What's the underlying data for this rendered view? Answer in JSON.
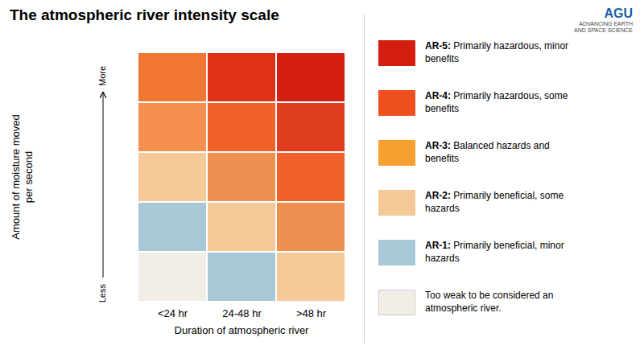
{
  "chart_data": {
    "type": "heatmap",
    "title": "The atmospheric river intensity scale",
    "xlabel": "Duration of atmospheric river",
    "ylabel": "Amount of moisture moved\nper second",
    "categories": [
      "<24 hr",
      "24-48 hr",
      ">48 hr"
    ],
    "cells": [
      [
        "#F07832",
        "#E03018",
        "#D41E10"
      ],
      [
        "#F59050",
        "#F06028",
        "#E03C20"
      ],
      [
        "#F5C898",
        "#F09050",
        "#F06028"
      ],
      [
        "#A8C8D8",
        "#F5C898",
        "#F09050"
      ],
      [
        "#F2EEE5",
        "#A8C8D8",
        "#F5C898"
      ]
    ],
    "y_arrow": {
      "top": "More",
      "bottom": "Less"
    },
    "tick_labels": "x",
    "legend_items": [
      {
        "label_bold": "AR-5:",
        "label": "Primarily hazardous, minor\nbenefits",
        "color": "#D41E10"
      },
      {
        "label_bold": "AR-4:",
        "label": "Primarily hazardous, some\nbenefits",
        "color": "#F05020"
      },
      {
        "label_bold": "AR-3:",
        "label": "Balanced hazards and\nbenefits",
        "color": "#F5A030"
      },
      {
        "label_bold": "AR-2:",
        "label": "Primarily beneficial, some\nhazards",
        "color": "#F5C898"
      },
      {
        "label_bold": "AR-1:",
        "label": "Primarily beneficial, minor\nhazards",
        "color": "#A8C8D8"
      },
      {
        "label": "Too weak to be considered an\natmospheric river.",
        "color": "#F2EEE5"
      }
    ],
    "logo": {
      "text": "AGU",
      "subtext": "ADVANCING EARTH\nAND SPACE SCIENCE",
      "color": "#1B5EA6"
    },
    "background_color": "#ffffff"
  }
}
